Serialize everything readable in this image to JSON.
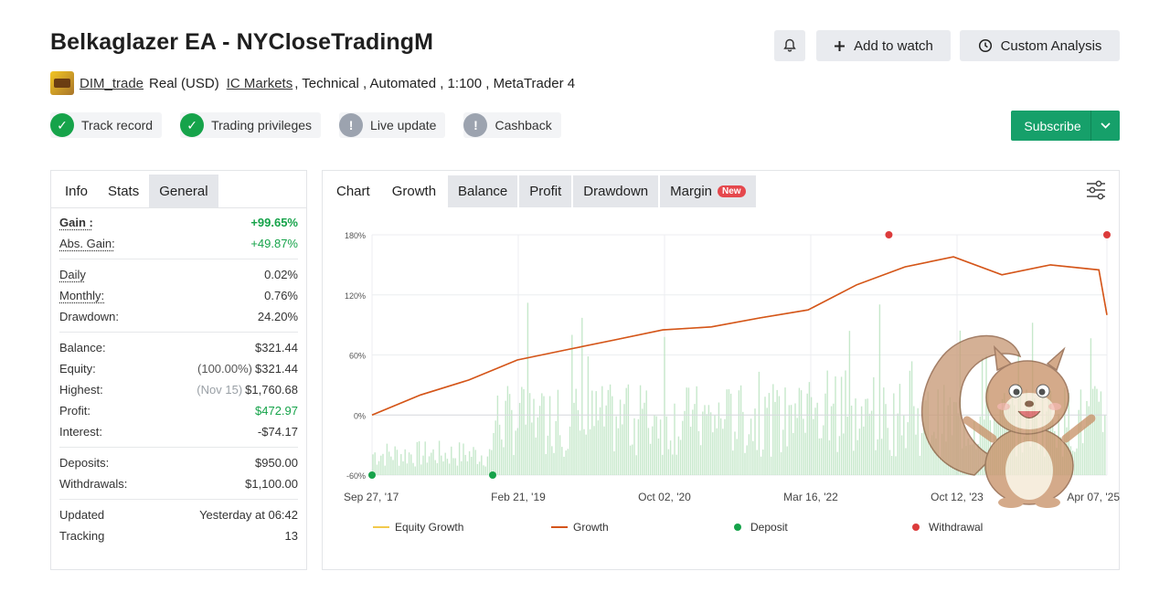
{
  "title": "Belkaglazer EA - NYCloseTradingM",
  "header_buttons": {
    "add_to_watch": "Add to watch",
    "custom_analysis": "Custom Analysis"
  },
  "meta": {
    "author": "DIM_trade",
    "account": "Real (USD)",
    "broker": "IC Markets",
    "tags": ", Technical , Automated , 1:100 , MetaTrader 4"
  },
  "badges": [
    {
      "label": "Track record",
      "status": "ok"
    },
    {
      "label": "Trading privileges",
      "status": "ok"
    },
    {
      "label": "Live update",
      "status": "info"
    },
    {
      "label": "Cashback",
      "status": "info"
    }
  ],
  "subscribe": "Subscribe",
  "left_tabs": {
    "info": "Info",
    "stats": "Stats",
    "general": "General"
  },
  "stats": {
    "gain": {
      "label": "Gain :",
      "value": "+99.65%"
    },
    "abs_gain": {
      "label": "Abs. Gain:",
      "value": "+49.87%"
    },
    "daily": {
      "label": "Daily",
      "value": "0.02%"
    },
    "monthly": {
      "label": "Monthly:",
      "value": "0.76%"
    },
    "drawdown": {
      "label": "Drawdown:",
      "value": "24.20%"
    },
    "balance": {
      "label": "Balance:",
      "value": "$321.44"
    },
    "equity": {
      "label": "Equity:",
      "note": "(100.00%)",
      "value": "$321.44"
    },
    "highest": {
      "label": "Highest:",
      "note": "(Nov 15)",
      "value": "$1,760.68"
    },
    "profit": {
      "label": "Profit:",
      "value": "$472.97"
    },
    "interest": {
      "label": "Interest:",
      "value": "-$74.17"
    },
    "deposits": {
      "label": "Deposits:",
      "value": "$950.00"
    },
    "withdrawals": {
      "label": "Withdrawals:",
      "value": "$1,100.00"
    },
    "updated": {
      "label": "Updated",
      "value": "Yesterday at 06:42"
    },
    "tracking": {
      "label": "Tracking",
      "value": "13"
    }
  },
  "chart_tabs": {
    "chart": "Chart",
    "growth": "Growth",
    "balance": "Balance",
    "profit": "Profit",
    "drawdown": "Drawdown",
    "margin": "Margin",
    "new_badge": "New"
  },
  "colors": {
    "growth": "#d4541b",
    "equity": "#f2c94c",
    "deposit": "#16a34a",
    "withdrawal": "#dc3b3b",
    "bars": "#b9e3bf",
    "brand_green": "#16a06a"
  },
  "chart_data": {
    "type": "line",
    "y_ticks": [
      "180%",
      "120%",
      "60%",
      "0%",
      "-60%"
    ],
    "ylim": [
      -60,
      180
    ],
    "x_ticks": [
      "Sep 27, '17",
      "Feb 21, '19",
      "Oct 02, '20",
      "Mar 16, '22",
      "Oct 12, '23",
      "Apr 07, '25"
    ],
    "x": [
      "2017-09",
      "2018-03",
      "2018-09",
      "2019-03",
      "2019-09",
      "2020-03",
      "2020-09",
      "2021-03",
      "2021-09",
      "2022-03",
      "2022-09",
      "2023-03",
      "2023-09",
      "2024-03",
      "2024-09",
      "2025-03",
      "2025-04"
    ],
    "series": [
      {
        "name": "Growth",
        "values": [
          0,
          20,
          35,
          55,
          65,
          75,
          85,
          88,
          97,
          105,
          130,
          148,
          158,
          140,
          150,
          145,
          100
        ]
      },
      {
        "name": "Equity Growth",
        "values": [
          0,
          20,
          35,
          55,
          65,
          75,
          85,
          88,
          97,
          105,
          130,
          148,
          158,
          140,
          150,
          145,
          100
        ]
      }
    ],
    "deposits": [
      {
        "x": "Sep 27, '17",
        "y": -60
      },
      {
        "x": "Feb 21, '19",
        "y": -60
      }
    ],
    "withdrawals": [
      {
        "x": "2023-01",
        "y": 180
      },
      {
        "x": "Apr 07, '25",
        "y": 180
      }
    ],
    "legend": [
      "Equity Growth",
      "Growth",
      "Deposit",
      "Withdrawal"
    ],
    "grid": true
  }
}
